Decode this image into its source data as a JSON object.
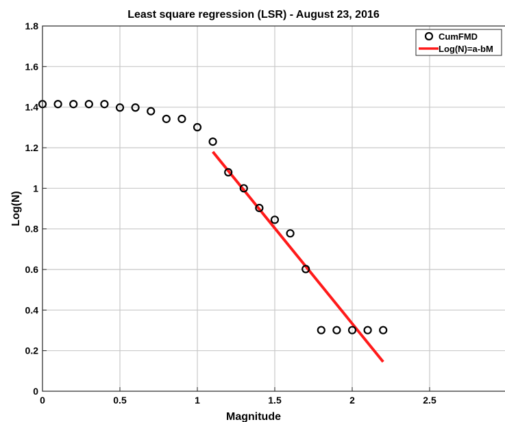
{
  "chart_data": {
    "type": "scatter",
    "title": "Least square regression (LSR) - August 23, 2016",
    "xlabel": "Magnitude",
    "ylabel": "Log(N)",
    "xlim": [
      0,
      3
    ],
    "ylim": [
      0,
      1.8
    ],
    "x_ticks": [
      0,
      0.5,
      1,
      1.5,
      2,
      2.5
    ],
    "x_tick_labels": [
      "0",
      "0.5",
      "1",
      "1.5",
      "2",
      "2.5"
    ],
    "y_ticks": [
      0,
      0.2,
      0.4,
      0.6,
      0.8,
      1,
      1.2,
      1.4,
      1.6,
      1.8
    ],
    "y_tick_labels": [
      "0",
      "0.2",
      "0.4",
      "0.6",
      "0.8",
      "1",
      "1.2",
      "1.4",
      "1.6",
      "1.8"
    ],
    "grid": true,
    "legend_position": "top-right",
    "series": [
      {
        "name": "CumFMD",
        "kind": "markers",
        "marker": "open-circle",
        "color": "#000000",
        "x": [
          0,
          0.1,
          0.2,
          0.3,
          0.4,
          0.5,
          0.6,
          0.7,
          0.8,
          0.9,
          1.0,
          1.1,
          1.2,
          1.3,
          1.4,
          1.5,
          1.6,
          1.7,
          1.8,
          1.9,
          2.0,
          2.1,
          2.2
        ],
        "y": [
          1.415,
          1.415,
          1.415,
          1.415,
          1.415,
          1.398,
          1.398,
          1.38,
          1.342,
          1.342,
          1.301,
          1.23,
          1.079,
          1.0,
          0.903,
          0.845,
          0.778,
          0.602,
          0.301,
          0.301,
          0.301,
          0.301,
          0.301
        ]
      },
      {
        "name": "Log(N)=a-bM",
        "kind": "line",
        "color": "#ff1a1a",
        "x": [
          1.1,
          2.2
        ],
        "y": [
          1.18,
          0.145
        ]
      }
    ]
  }
}
